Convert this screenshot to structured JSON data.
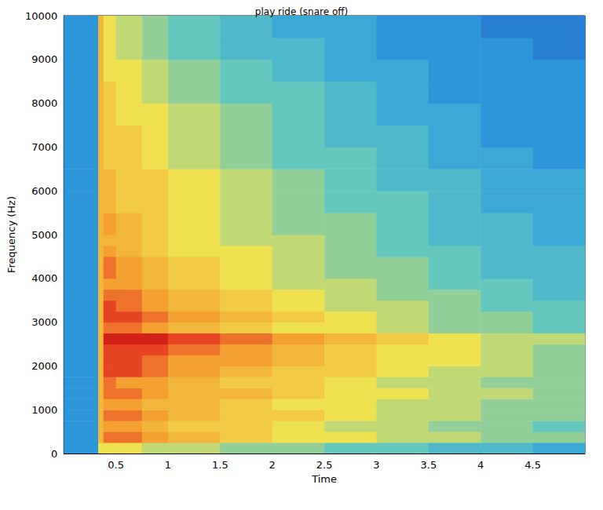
{
  "chart_data": {
    "type": "heatmap",
    "title": "play ride (snare off)",
    "x_label": "Time",
    "y_label": "Frequency (Hz)",
    "xlim": [
      0,
      5
    ],
    "xticks": [
      0.5,
      1,
      1.5,
      2,
      2.5,
      3,
      3.5,
      4,
      4.5
    ],
    "ylim": [
      0,
      10000
    ],
    "yticks": [
      0,
      1000,
      2000,
      3000,
      4000,
      5000,
      6000,
      7000,
      8000,
      9000,
      10000
    ],
    "clim": [
      0,
      10
    ],
    "time_edges": [
      0,
      0.33,
      0.38,
      0.5,
      0.75,
      1,
      1.5,
      2,
      2.5,
      3,
      3.5,
      4,
      4.5,
      5
    ],
    "frequency_edges": [
      0,
      250,
      500,
      750,
      1000,
      1250,
      1500,
      1750,
      2000,
      2250,
      2500,
      2750,
      3000,
      3250,
      3500,
      3750,
      4000,
      4250,
      4500,
      4750,
      5000,
      5500,
      6000,
      6500,
      7000,
      7500,
      8000,
      8500,
      9000,
      9500,
      10000
    ],
    "cells": [
      [
        3,
        6,
        6,
        6,
        5.5,
        5.5,
        5,
        5,
        4.5,
        4.5,
        4,
        4,
        3.5
      ],
      [
        3,
        7,
        8,
        8,
        7.5,
        7,
        6.5,
        6,
        6,
        5.5,
        5.5,
        5,
        5
      ],
      [
        3,
        7,
        7.5,
        7.5,
        7,
        6.5,
        6.5,
        6,
        5.5,
        5.5,
        5,
        5,
        4.5
      ],
      [
        3,
        7,
        8,
        8,
        7.5,
        7,
        6.5,
        6.5,
        6,
        5.5,
        5.5,
        5,
        5
      ],
      [
        3,
        7,
        7.5,
        7.5,
        7,
        7,
        6.5,
        6,
        6,
        5.5,
        5.5,
        5,
        5
      ],
      [
        3,
        7,
        8,
        8,
        7.5,
        7,
        7,
        6.5,
        6,
        6,
        5.5,
        5.5,
        5
      ],
      [
        3,
        7,
        8,
        7.5,
        7.5,
        7,
        6.5,
        6.5,
        6,
        5.5,
        5.5,
        5,
        5
      ],
      [
        3,
        7,
        8.5,
        8.5,
        8,
        7.5,
        7,
        6.5,
        6.5,
        6,
        5.5,
        5.5,
        5
      ],
      [
        3,
        7,
        8.5,
        8.5,
        8,
        7.5,
        7.5,
        7,
        6.5,
        6,
        6,
        5.5,
        5
      ],
      [
        3,
        7,
        8.5,
        8.5,
        8.5,
        8,
        7.5,
        7,
        6.5,
        6,
        6,
        5.5,
        5
      ],
      [
        3,
        7,
        9,
        9,
        9,
        8.5,
        8,
        7.5,
        7,
        6.5,
        6,
        5.5,
        5.5
      ],
      [
        3,
        7,
        8,
        8,
        7.5,
        7,
        6.5,
        6,
        6,
        5.5,
        5,
        5,
        4.5
      ],
      [
        3,
        7,
        8.5,
        8.5,
        8,
        7.5,
        7,
        6.5,
        6,
        5.5,
        5,
        5,
        4.5
      ],
      [
        3,
        7,
        8.5,
        8,
        7.5,
        7,
        6.5,
        6,
        5.5,
        5.5,
        5,
        4.5,
        4.5
      ],
      [
        3,
        7,
        8,
        8,
        7.5,
        7,
        6.5,
        6,
        5.5,
        5,
        5,
        4.5,
        4
      ],
      [
        3,
        7,
        7.5,
        7.5,
        7,
        6.5,
        6,
        5.5,
        5.5,
        5,
        4.5,
        4.5,
        4
      ],
      [
        3,
        7,
        8,
        7.5,
        7,
        6.5,
        6,
        5.5,
        5,
        5,
        4.5,
        4,
        4
      ],
      [
        3,
        7,
        8,
        7.5,
        7,
        6.5,
        6,
        5.5,
        5,
        5,
        4.5,
        4,
        4
      ],
      [
        3,
        7,
        7.5,
        7,
        6.5,
        6,
        6,
        5.5,
        5,
        4.5,
        4.5,
        4,
        4
      ],
      [
        3,
        7,
        7,
        7,
        6.5,
        6,
        5.5,
        5.5,
        5,
        4.5,
        4,
        4,
        3.5
      ],
      [
        3,
        7,
        7.5,
        7,
        6.5,
        6,
        5.5,
        5,
        5,
        4.5,
        4,
        4,
        3.5
      ],
      [
        3,
        7,
        7,
        6.5,
        6.5,
        6,
        5.5,
        5,
        4.5,
        4.5,
        4,
        3.5,
        3.5
      ],
      [
        3,
        7,
        7,
        6.5,
        6.5,
        6,
        5.5,
        5,
        4.5,
        4,
        4,
        3.5,
        3.5
      ],
      [
        3,
        7,
        6.5,
        6.5,
        6,
        5.5,
        5,
        4.5,
        4.5,
        4,
        3.5,
        3.5,
        3
      ],
      [
        3,
        7,
        6.5,
        6.5,
        6,
        5.5,
        5,
        4.5,
        4,
        4,
        3.5,
        3,
        3
      ],
      [
        3,
        7,
        6.5,
        6,
        6,
        5.5,
        5,
        4.5,
        4,
        3.5,
        3.5,
        3,
        3
      ],
      [
        3,
        7,
        6.5,
        6,
        5.5,
        5,
        4.5,
        4.5,
        4,
        3.5,
        3,
        3,
        3
      ],
      [
        3,
        7,
        6,
        6,
        5.5,
        5,
        4.5,
        4,
        3.5,
        3.5,
        3,
        3,
        3
      ],
      [
        3,
        7,
        6,
        5.5,
        5,
        4.5,
        4,
        4,
        3.5,
        3,
        3,
        3,
        2.5
      ],
      [
        3,
        7,
        6,
        5.5,
        5,
        4.5,
        4,
        3.5,
        3.5,
        3,
        3,
        2.5,
        2.5
      ]
    ]
  }
}
